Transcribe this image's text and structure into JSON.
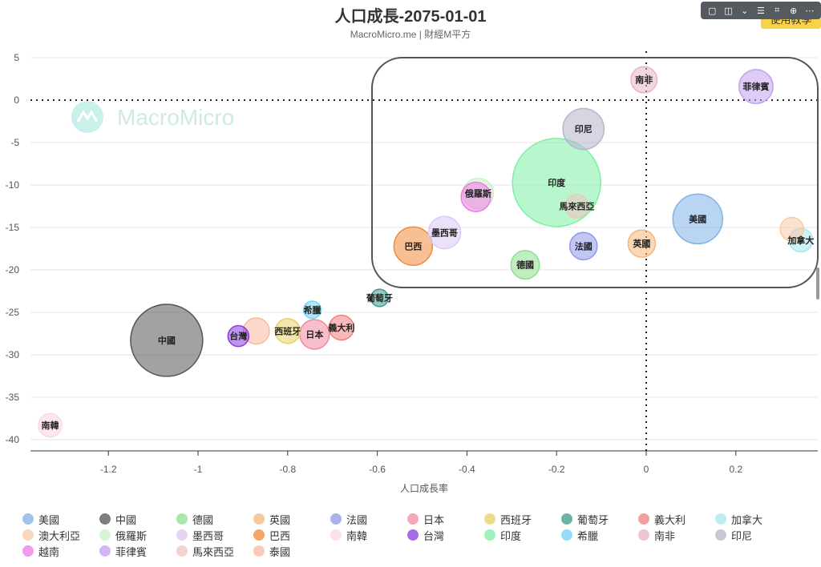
{
  "title": "人口成長-2075-01-01",
  "subtitle": "MacroMicro.me | 財經M平方",
  "watermark": "MacroMicro",
  "tutorial_button": "使用教學",
  "toolbar_icons": [
    "comment-icon",
    "camera-icon",
    "chevron-down-icon",
    "layout-icon",
    "crop-icon",
    "download-icon",
    "more-icon"
  ],
  "chart_data": {
    "type": "scatter",
    "title": "人口成長-2075-01-01",
    "xlabel": "人口成長率",
    "ylabel": "",
    "xlim": [
      -1.35,
      0.38
    ],
    "ylim": [
      -41.5,
      6.5
    ],
    "xticks": [
      -1.2,
      -1,
      -0.8,
      -0.6,
      -0.4,
      -0.2,
      0,
      0.2
    ],
    "xtick_labels": [
      "-1.2",
      "-1",
      "-0.8",
      "-0.6",
      "-0.4",
      "-0.2",
      "0",
      "0.2"
    ],
    "yticks": [
      5,
      0,
      -5,
      -10,
      -15,
      -20,
      -25,
      -30,
      -35,
      -40
    ],
    "ytick_labels": [
      "5",
      "0",
      "-5",
      "-10",
      "-15",
      "-20",
      "-25",
      "-30",
      "-35",
      "-40"
    ],
    "grid": true,
    "legend_position": "bottom",
    "series": [
      {
        "name": "美國",
        "x": 0.115,
        "y": -14.0,
        "size": 4.0,
        "color": "#7fb2e5",
        "show_label": true
      },
      {
        "name": "中國",
        "x": -1.07,
        "y": -28.3,
        "size": 10.0,
        "color": "#555555",
        "show_label": true
      },
      {
        "name": "德國",
        "x": -0.27,
        "y": -19.4,
        "size": 0.8,
        "color": "#8ee08e",
        "show_label": true
      },
      {
        "name": "英國",
        "x": -0.01,
        "y": -16.9,
        "size": 0.7,
        "color": "#f5b77a",
        "show_label": true
      },
      {
        "name": "法國",
        "x": -0.14,
        "y": -17.2,
        "size": 0.7,
        "color": "#8f97e8",
        "show_label": true
      },
      {
        "name": "日本",
        "x": -0.74,
        "y": -27.6,
        "size": 0.9,
        "color": "#f08aa0",
        "show_label": true
      },
      {
        "name": "西班牙",
        "x": -0.8,
        "y": -27.2,
        "size": 0.5,
        "color": "#e6d266",
        "show_label": true
      },
      {
        "name": "葡萄牙",
        "x": -0.595,
        "y": -23.3,
        "size": 0.1,
        "color": "#3d9a8e",
        "show_label": true
      },
      {
        "name": "義大利",
        "x": -0.68,
        "y": -26.8,
        "size": 0.5,
        "color": "#f08080",
        "show_label": true
      },
      {
        "name": "加拿大",
        "x": 0.345,
        "y": -16.5,
        "size": 0.4,
        "color": "#a7e8ec",
        "show_label": true
      },
      {
        "name": "澳大利亞",
        "x": 0.325,
        "y": -15.2,
        "size": 0.4,
        "color": "#f9c9a8",
        "show_label": false
      },
      {
        "name": "俄羅斯",
        "x": -0.375,
        "y": -11.0,
        "size": 1.0,
        "color": "#c9f2c9",
        "show_label": true
      },
      {
        "name": "墨西哥",
        "x": -0.45,
        "y": -15.6,
        "size": 1.2,
        "color": "#dcc8f5",
        "show_label": true
      },
      {
        "name": "巴西",
        "x": -0.52,
        "y": -17.2,
        "size": 2.0,
        "color": "#f08a3a",
        "show_label": true
      },
      {
        "name": "南韓",
        "x": -1.33,
        "y": -38.3,
        "size": 0.4,
        "color": "#fbd6e4",
        "show_label": true
      },
      {
        "name": "台灣",
        "x": -0.91,
        "y": -27.8,
        "size": 0.25,
        "color": "#8a3be0",
        "show_label": true
      },
      {
        "name": "印度",
        "x": -0.2,
        "y": -9.7,
        "size": 16.0,
        "color": "#7ef0a4",
        "show_label": true
      },
      {
        "name": "希臘",
        "x": -0.745,
        "y": -24.7,
        "size": 0.1,
        "color": "#6ed6f5",
        "show_label": true
      },
      {
        "name": "南非",
        "x": -0.005,
        "y": 2.4,
        "size": 0.6,
        "color": "#e8b4c8",
        "show_label": true
      },
      {
        "name": "印尼",
        "x": -0.14,
        "y": -3.4,
        "size": 2.4,
        "color": "#b5b5cc",
        "show_label": true
      },
      {
        "name": "越南",
        "x": -0.38,
        "y": -11.4,
        "size": 0.9,
        "color": "#f07ae8",
        "show_label": false
      },
      {
        "name": "菲律賓",
        "x": 0.245,
        "y": 1.6,
        "size": 1.4,
        "color": "#c2a0f0",
        "show_label": true
      },
      {
        "name": "馬來西亞",
        "x": -0.155,
        "y": -12.5,
        "size": 0.4,
        "color": "#f0c4c0",
        "show_label": true
      },
      {
        "name": "泰國",
        "x": -0.87,
        "y": -27.2,
        "size": 0.6,
        "color": "#f9b8a0",
        "show_label": false
      }
    ]
  }
}
